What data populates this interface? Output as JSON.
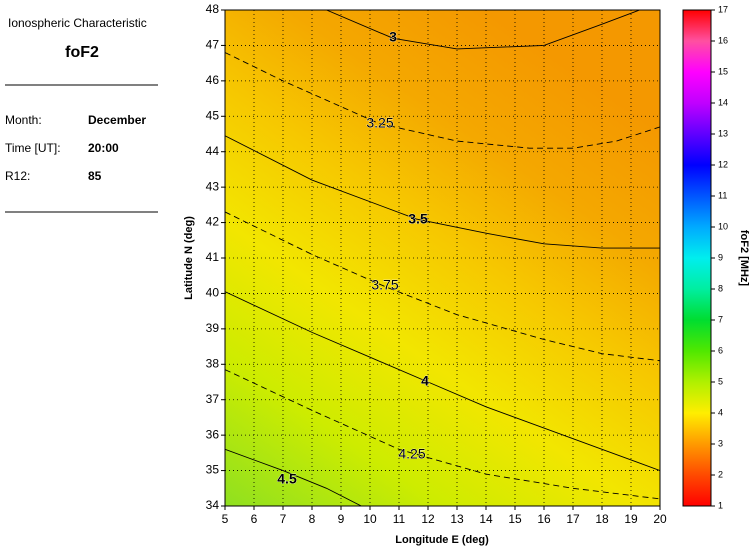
{
  "panel": {
    "heading": "Ionospheric Characteristic",
    "parameter": "foF2",
    "rows": [
      [
        "Month:",
        "December"
      ],
      [
        "Time [UT]:",
        "20:00"
      ],
      [
        "R12:",
        "85"
      ]
    ]
  },
  "chart_data": {
    "type": "contour",
    "xlabel": "Longitude E (deg)",
    "ylabel": "Latitude N (deg)",
    "xlim": [
      5,
      20
    ],
    "ylim": [
      34,
      48
    ],
    "xticks": [
      5,
      6,
      7,
      8,
      9,
      10,
      11,
      12,
      13,
      14,
      15,
      16,
      17,
      18,
      19,
      20
    ],
    "yticks": [
      34,
      35,
      36,
      37,
      38,
      39,
      40,
      41,
      42,
      43,
      44,
      45,
      46,
      47,
      48
    ],
    "grid": true,
    "series": [
      {
        "level": 3,
        "linestyle": "solid",
        "x": [
          8.5,
          10.8,
          13,
          16,
          18,
          19.3
        ],
        "values": [
          48,
          47.2,
          46.9,
          47.0,
          47.6,
          48
        ]
      },
      {
        "level": 3.25,
        "linestyle": "dashed",
        "x": [
          5,
          7,
          10.3,
          13,
          15.5,
          17,
          18.5,
          20
        ],
        "values": [
          46.8,
          46.0,
          44.8,
          44.3,
          44.1,
          44.1,
          44.3,
          44.7
        ]
      },
      {
        "level": 3.5,
        "linestyle": "solid",
        "x": [
          5,
          8,
          11.6,
          14,
          16,
          18,
          20
        ],
        "values": [
          44.45,
          43.2,
          42.1,
          41.7,
          41.4,
          41.28,
          41.28
        ]
      },
      {
        "level": 3.75,
        "linestyle": "dashed",
        "x": [
          5,
          8,
          10.5,
          13,
          16,
          18,
          20
        ],
        "values": [
          42.3,
          41.1,
          40.2,
          39.4,
          38.7,
          38.3,
          38.1
        ]
      },
      {
        "level": 4,
        "linestyle": "solid",
        "x": [
          5,
          8,
          10,
          12,
          14,
          16,
          18,
          20
        ],
        "values": [
          40.05,
          38.9,
          38.2,
          37.5,
          36.8,
          36.2,
          35.6,
          35.0
        ]
      },
      {
        "level": 4.25,
        "linestyle": "dashed",
        "x": [
          5,
          8,
          11,
          14,
          17,
          20
        ],
        "values": [
          37.85,
          36.7,
          35.6,
          34.9,
          34.5,
          34.2
        ]
      },
      {
        "level": 4.5,
        "linestyle": "solid",
        "x": [
          5,
          7,
          8.5,
          9.7
        ],
        "values": [
          35.6,
          35.0,
          34.5,
          34
        ]
      }
    ],
    "colorbar": {
      "label": "foF2 [MHz]",
      "lim": [
        1,
        17
      ],
      "ticks": [
        1,
        2,
        3,
        4,
        5,
        6,
        7,
        8,
        9,
        10,
        11,
        12,
        13,
        14,
        15,
        16,
        17
      ]
    }
  }
}
